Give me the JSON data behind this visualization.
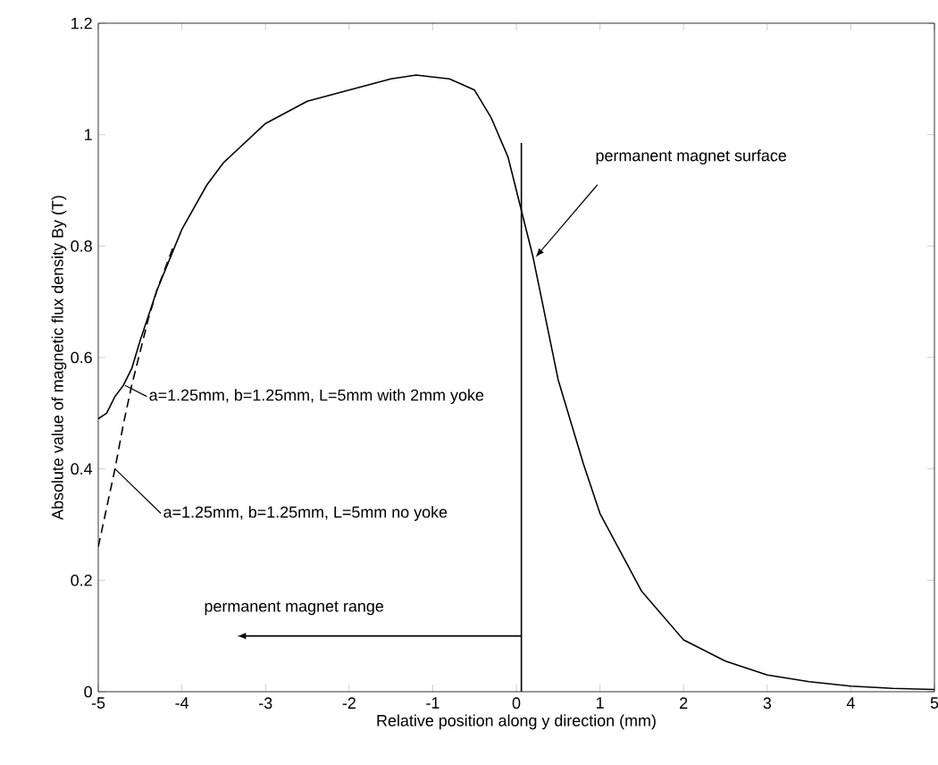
{
  "chart_data": {
    "type": "line",
    "xlabel": "Relative position along y direction (mm)",
    "ylabel": "Absolute value of magnetic flux density By (T)",
    "xlim": [
      -5,
      5
    ],
    "xticks": [
      -5,
      -4,
      -3,
      -2,
      -1,
      0,
      1,
      2,
      3,
      4,
      5
    ],
    "ylim": [
      0,
      1.2
    ],
    "yticks": [
      0,
      0.2,
      0.4,
      0.6,
      0.8,
      1,
      1.2
    ],
    "grid": false,
    "marker": "none",
    "series": [
      {
        "color": "#000000",
        "line_style": "solid",
        "x": [
          -5,
          -4.9,
          -4.8,
          -4.7,
          -4.6,
          -4.5,
          -4.3,
          -4,
          -3.7,
          -3.5,
          -3,
          -2.5,
          -2,
          -1.5,
          -1.2,
          -0.8,
          -0.5,
          -0.3,
          -0.1,
          0,
          0.2,
          0.5,
          0.8,
          1,
          1.5,
          2,
          2.5,
          3,
          3.5,
          4,
          4.5,
          5
        ],
        "values": [
          0.49,
          0.5,
          0.53,
          0.55,
          0.58,
          0.63,
          0.72,
          0.83,
          0.91,
          0.95,
          1.02,
          1.06,
          1.08,
          1.1,
          1.107,
          1.1,
          1.08,
          1.03,
          0.96,
          0.9,
          0.78,
          0.56,
          0.41,
          0.32,
          0.18,
          0.093,
          0.055,
          0.03,
          0.018,
          0.01,
          0.006,
          0.004
        ]
      },
      {
        "color": "#000000",
        "line_style": "dashed",
        "x": [
          -5,
          -4.9,
          -4.8,
          -4.7,
          -4.6,
          -4.5,
          -4.4,
          -4.3,
          -4.1
        ],
        "values": [
          0.26,
          0.33,
          0.4,
          0.48,
          0.55,
          0.61,
          0.67,
          0.72,
          0.8
        ]
      },
      {
        "color": "#000000",
        "line_style": "solid",
        "x": [
          0.06,
          0.06
        ],
        "values": [
          0,
          0.985
        ]
      }
    ],
    "annotations": [
      {
        "text": "a=1.25mm, b=1.25mm, L=5mm with 2mm yoke",
        "x": -4.68,
        "y": 0.55
      },
      {
        "text": "a=1.25mm, b=1.25mm, L=5mm no yoke",
        "x": -4.8,
        "y": 0.4
      },
      {
        "text": "permanent magnet surface",
        "x": 0.23,
        "y": 0.78
      },
      "permanent magnet range"
    ]
  }
}
